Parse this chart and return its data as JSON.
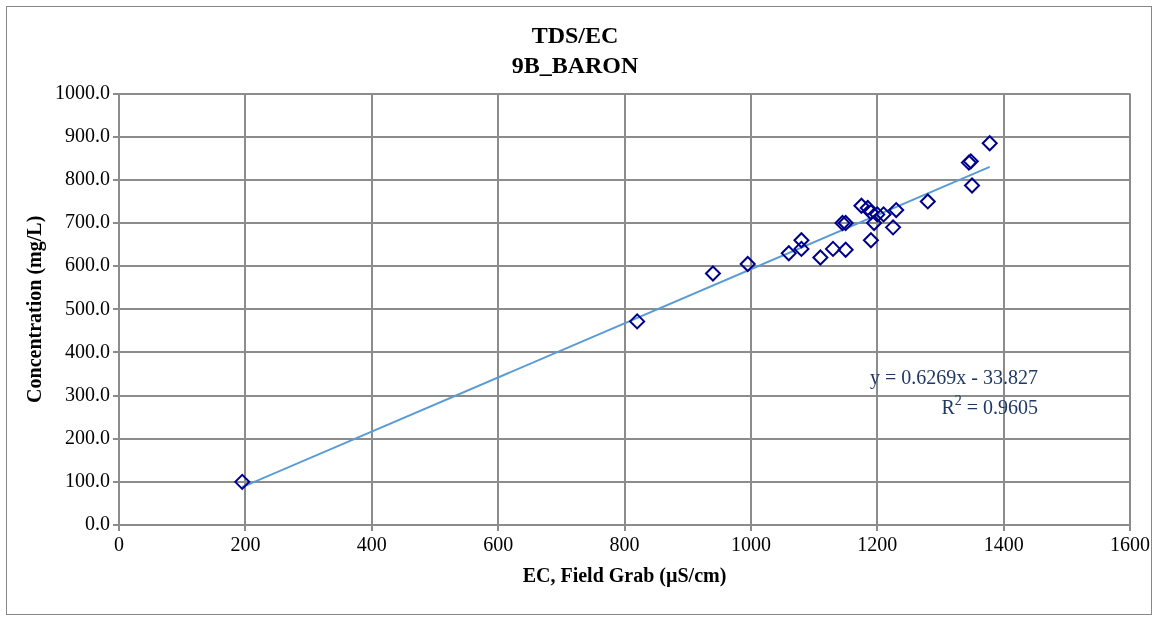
{
  "chart_data": {
    "type": "scatter",
    "title": "TDS/EC",
    "subtitle": "9B_BARON",
    "xlabel": "EC, Field Grab (µS/cm)",
    "ylabel": "Concentration (mg/L)",
    "xlim": [
      0,
      1600
    ],
    "xticks": [
      0,
      200,
      400,
      600,
      800,
      1000,
      1200,
      1400,
      1600
    ],
    "ylim": [
      0,
      1000
    ],
    "yticks": [
      {
        "value": 0,
        "label": "0.0"
      },
      {
        "value": 100,
        "label": "100.0"
      },
      {
        "value": 200,
        "label": "200.0"
      },
      {
        "value": 300,
        "label": "300.0"
      },
      {
        "value": 400,
        "label": "400.0"
      },
      {
        "value": 500,
        "label": "500.0"
      },
      {
        "value": 600,
        "label": "600.0"
      },
      {
        "value": 700,
        "label": "700.0"
      },
      {
        "value": 800,
        "label": "800.0"
      },
      {
        "value": 900,
        "label": "900.0"
      },
      {
        "value": 1000,
        "label": "1000.0"
      }
    ],
    "grid": true,
    "legend": false,
    "marker": "diamond",
    "series": [
      {
        "color": "#00008b",
        "x": [
          195,
          820,
          940,
          995,
          1060,
          1080,
          1080,
          1110,
          1130,
          1145,
          1150,
          1150,
          1175,
          1185,
          1190,
          1190,
          1195,
          1200,
          1210,
          1225,
          1230,
          1280,
          1345,
          1348,
          1350,
          1378
        ],
        "values": [
          100,
          472,
          583,
          605,
          630,
          660,
          640,
          620,
          640,
          700,
          700,
          638,
          740,
          735,
          725,
          660,
          700,
          720,
          720,
          690,
          730,
          750,
          840,
          843,
          787,
          885
        ]
      },
      {
        "type": "line",
        "color": "#5b9bd5",
        "marker": "none",
        "x": [
          195,
          1378
        ],
        "values": [
          88,
          830
        ]
      }
    ],
    "annotations": [
      "y = 0.6269x - 33.827",
      "R$^{2}$ = 0.9605"
    ]
  }
}
